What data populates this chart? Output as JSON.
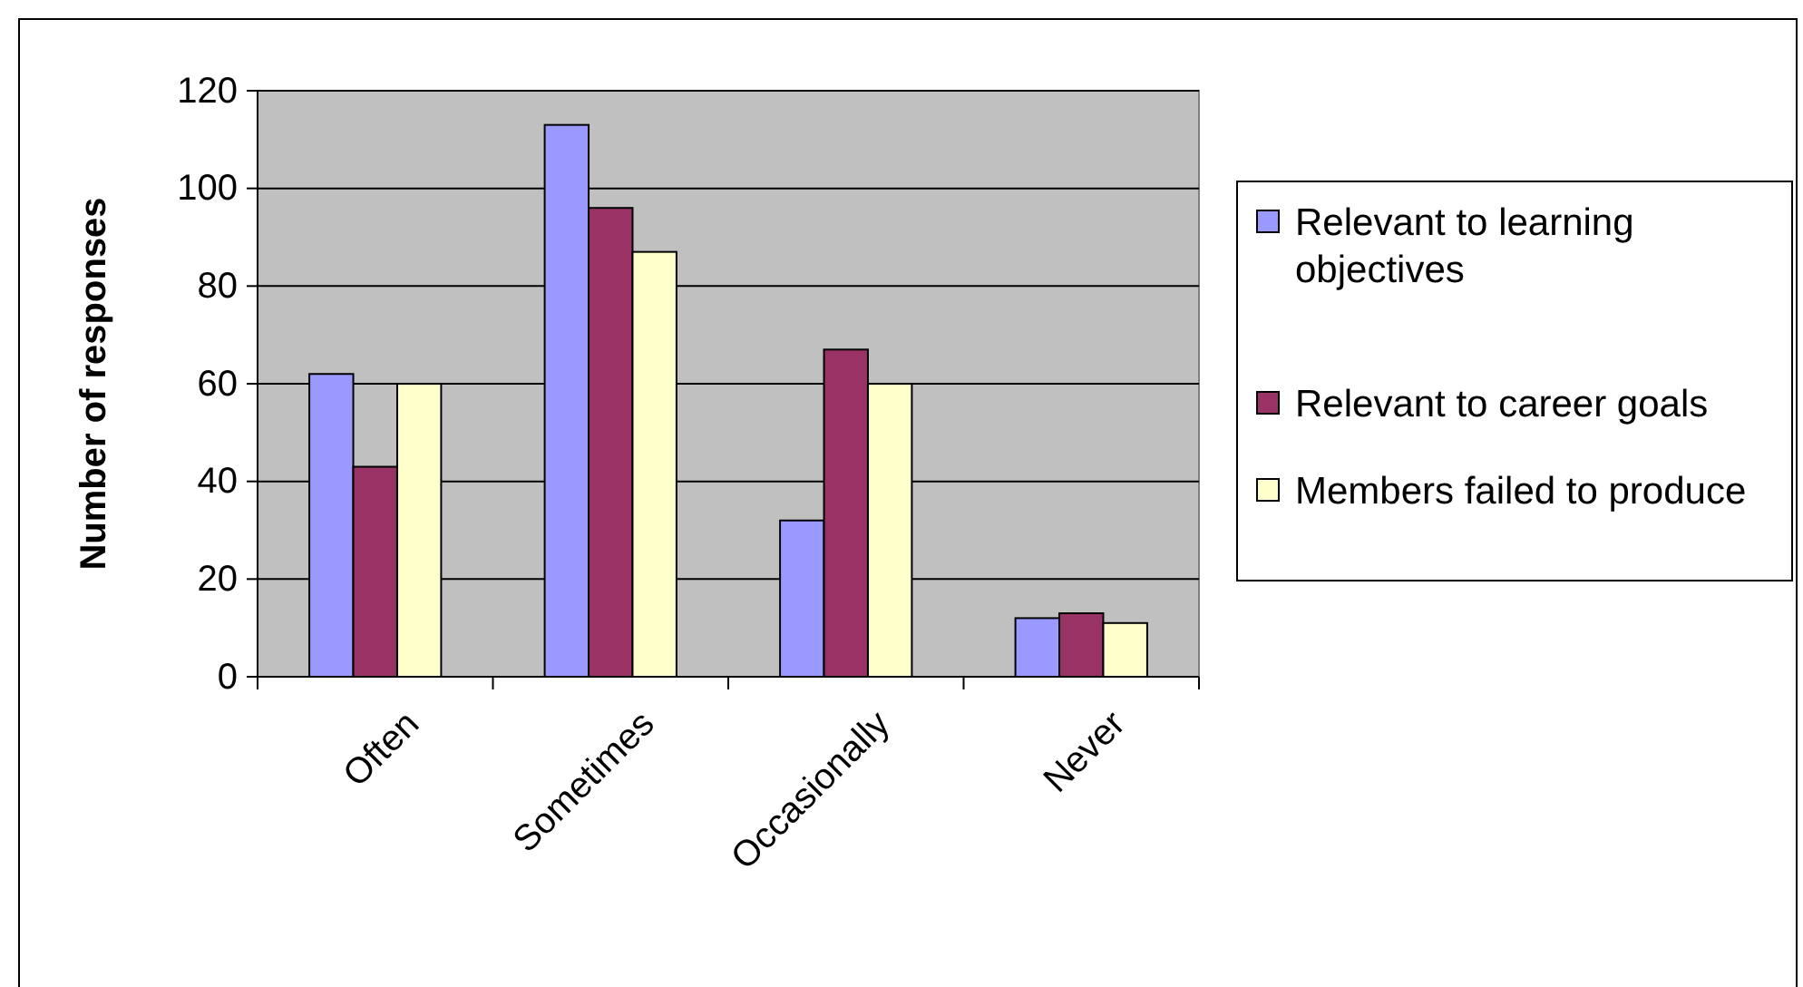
{
  "chart_data": {
    "type": "bar",
    "ylabel": "Number of responses",
    "categories": [
      "Often",
      "Sometimes",
      "Occasionally",
      "Never"
    ],
    "series": [
      {
        "name": "Relevant to learning objectives",
        "color": "#9999ff",
        "values": [
          62,
          113,
          32,
          12
        ]
      },
      {
        "name": "Relevant to career goals",
        "color": "#993366",
        "values": [
          43,
          96,
          67,
          13
        ]
      },
      {
        "name": "Members failed to produce",
        "color": "#ffffcc",
        "values": [
          60,
          87,
          60,
          11
        ]
      }
    ],
    "ylim": [
      0,
      120
    ],
    "yticks": [
      0,
      20,
      40,
      60,
      80,
      100,
      120
    ],
    "grid": "y",
    "legend": "right"
  }
}
